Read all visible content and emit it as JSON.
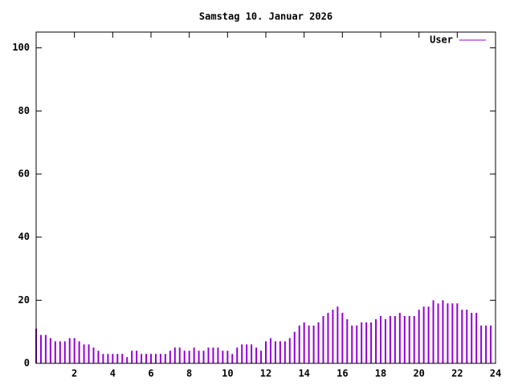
{
  "chart_data": {
    "type": "impulse",
    "title": "Samstag 10. Januar 2026",
    "x": [
      0,
      0.25,
      0.5,
      0.75,
      1,
      1.25,
      1.5,
      1.75,
      2,
      2.25,
      2.5,
      2.75,
      3,
      3.25,
      3.5,
      3.75,
      4,
      4.25,
      4.5,
      4.75,
      5,
      5.25,
      5.5,
      5.75,
      6,
      6.25,
      6.5,
      6.75,
      7,
      7.25,
      7.5,
      7.75,
      8,
      8.25,
      8.5,
      8.75,
      9,
      9.25,
      9.5,
      9.75,
      10,
      10.25,
      10.5,
      10.75,
      11,
      11.25,
      11.5,
      11.75,
      12,
      12.25,
      12.5,
      12.75,
      13,
      13.25,
      13.5,
      13.75,
      14,
      14.25,
      14.5,
      14.75,
      15,
      15.25,
      15.5,
      15.75,
      16,
      16.25,
      16.5,
      16.75,
      17,
      17.25,
      17.5,
      17.75,
      18,
      18.25,
      18.5,
      18.75,
      19,
      19.25,
      19.5,
      19.75,
      20,
      20.25,
      20.5,
      20.75,
      21,
      21.25,
      21.5,
      21.75,
      22,
      22.25,
      22.5,
      22.75,
      23,
      23.25,
      23.5,
      23.75
    ],
    "series": [
      {
        "name": "User",
        "color": "#9400d3",
        "values": [
          11,
          9,
          9,
          8,
          7,
          7,
          7,
          8,
          8,
          7,
          6,
          6,
          5,
          4,
          3,
          3,
          3,
          3,
          3,
          2,
          4,
          4,
          3,
          3,
          3,
          3,
          3,
          3,
          4,
          5,
          5,
          4,
          4,
          5,
          4,
          4,
          5,
          5,
          5,
          4,
          4,
          3,
          5,
          6,
          6,
          6,
          5,
          4,
          7,
          8,
          7,
          7,
          7,
          8,
          10,
          12,
          13,
          12,
          12,
          13,
          15,
          16,
          17,
          18,
          16,
          14,
          12,
          12,
          13,
          13,
          13,
          14,
          15,
          14,
          15,
          15,
          16,
          15,
          15,
          15,
          17,
          18,
          18,
          20,
          19,
          20,
          19,
          19,
          19,
          17,
          17,
          16,
          16,
          12,
          12,
          12
        ]
      }
    ],
    "xlim": [
      0,
      24
    ],
    "xticks": [
      2,
      4,
      6,
      8,
      10,
      12,
      14,
      16,
      18,
      20,
      22,
      24
    ],
    "ylim": [
      0,
      105
    ],
    "yticks": [
      0,
      20,
      40,
      60,
      80,
      100
    ]
  }
}
